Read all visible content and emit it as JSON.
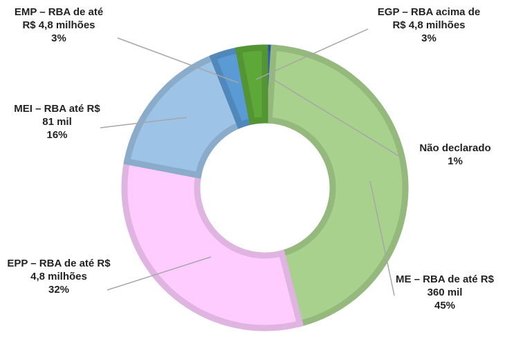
{
  "chart_data": {
    "type": "donut",
    "categories": [
      "Não declarado",
      "ME – RBA de até R$ 360 mil",
      "EPP – RBA de até R$ 4,8 milhões",
      "MEI – RBA até R$ 81 mil",
      "EMP – RBA de até R$ 4,8 milhões",
      "EGP – RBA acima de R$ 4,8 milhões"
    ],
    "values": [
      1,
      45,
      32,
      16,
      3,
      3
    ],
    "value_labels": [
      "1%",
      "45%",
      "32%",
      "16%",
      "3%",
      "3%"
    ],
    "colors": [
      "#2e5eb8",
      "#a9d18e",
      "#ffccff",
      "#9dc3e6",
      "#5b9bd5",
      "#5ea83a"
    ]
  }
}
